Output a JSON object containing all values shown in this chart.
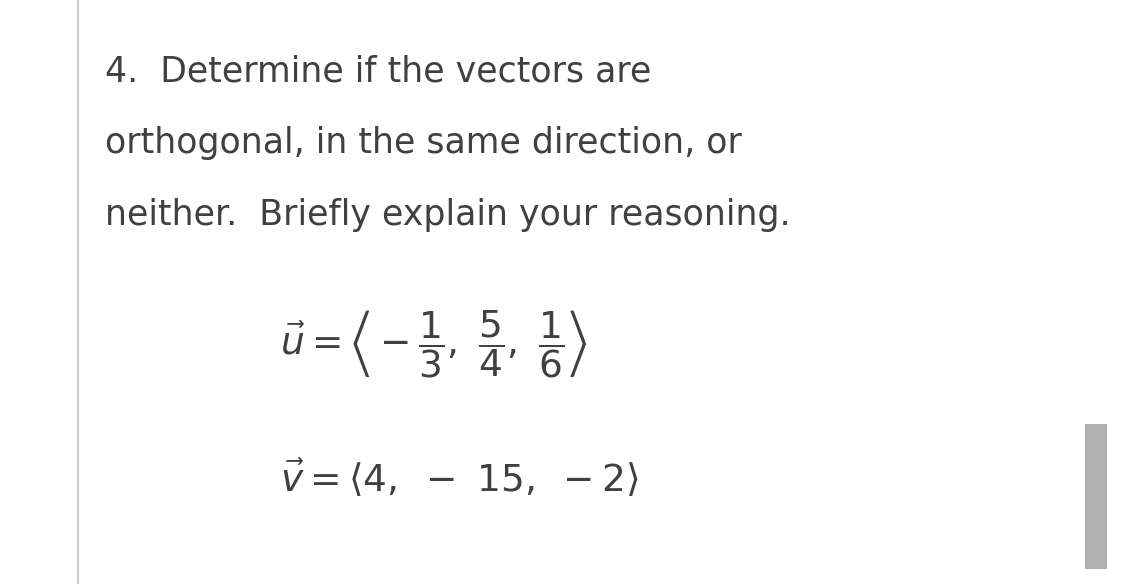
{
  "background_color": "#ffffff",
  "text_color": "#404040",
  "left_line_color": "#c0c0c0",
  "right_bar_color": "#b0b0b0",
  "line1": "4.  Determine if the vectors are",
  "line2": "orthogonal, in the same direction, or",
  "line3": "neither.  Briefly explain your reasoning.",
  "vec_u": "$\\vec{u} = \\left\\langle -\\dfrac{1}{3},\\ \\dfrac{5}{4},\\ \\dfrac{1}{6}\\right\\rangle$",
  "vec_v": "$\\vec{v} = \\langle 4,\\ -\\ 15,\\ -2\\rangle$",
  "fig_width": 11.25,
  "fig_height": 5.84,
  "dpi": 100
}
